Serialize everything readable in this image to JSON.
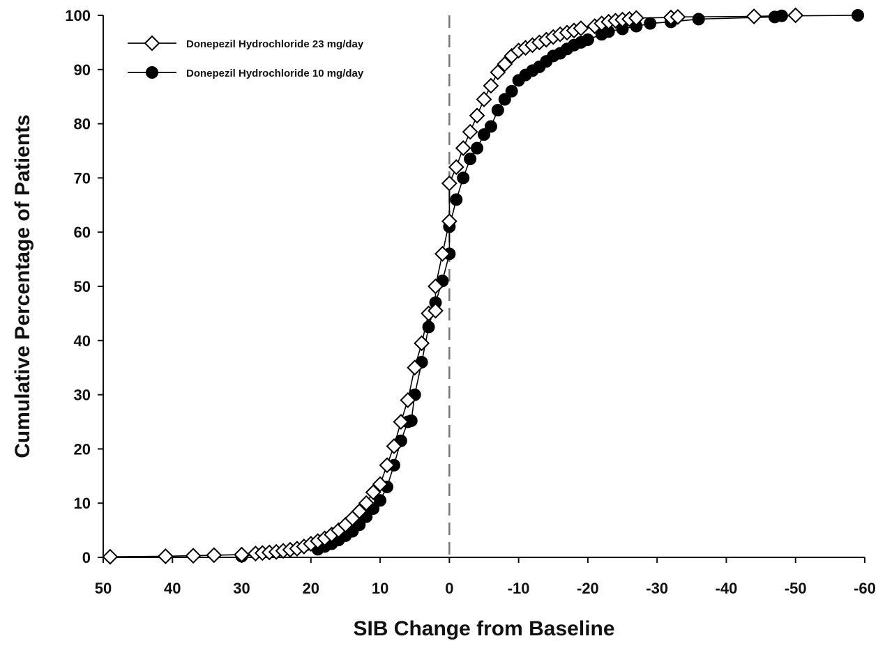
{
  "chart_data": {
    "type": "line",
    "title": "",
    "xlabel": "SIB Change from Baseline",
    "ylabel": "Cumulative Percentage of Patients",
    "xlim": [
      50,
      -60
    ],
    "ylim": [
      0,
      100
    ],
    "x_reversed": true,
    "xticks": [
      50,
      40,
      30,
      20,
      10,
      0,
      -10,
      -20,
      -30,
      -40,
      -50,
      -60
    ],
    "xtick_labels": [
      "50",
      "40",
      "30",
      "20",
      "10",
      "0",
      "-10",
      "-20",
      "-30",
      "-40",
      "-50",
      "-60"
    ],
    "yticks": [
      0,
      10,
      20,
      30,
      40,
      50,
      60,
      70,
      80,
      90,
      100
    ],
    "ytick_labels": [
      "0",
      "10",
      "20",
      "30",
      "40",
      "50",
      "60",
      "70",
      "80",
      "90",
      "100"
    ],
    "grid": false,
    "legend_position": "top-left",
    "reference_line": {
      "x": 0,
      "style": "dashed",
      "color": "#777777"
    },
    "series": [
      {
        "name": "Donepezil Hydrochloride 23 mg/day",
        "marker": "diamond-open",
        "color": "#000000",
        "points": [
          [
            49,
            0.1
          ],
          [
            41,
            0.2
          ],
          [
            37,
            0.3
          ],
          [
            34,
            0.4
          ],
          [
            30,
            0.5
          ],
          [
            28,
            0.7
          ],
          [
            27,
            0.8
          ],
          [
            26,
            0.9
          ],
          [
            25,
            1.0
          ],
          [
            24,
            1.2
          ],
          [
            23,
            1.4
          ],
          [
            22,
            1.6
          ],
          [
            21,
            2.0
          ],
          [
            20,
            2.5
          ],
          [
            19,
            3.0
          ],
          [
            18,
            3.5
          ],
          [
            17,
            4.2
          ],
          [
            16,
            5.0
          ],
          [
            15,
            6.0
          ],
          [
            14,
            7.2
          ],
          [
            13,
            8.5
          ],
          [
            12,
            10.0
          ],
          [
            11,
            12.0
          ],
          [
            10,
            13.5
          ],
          [
            9,
            17.0
          ],
          [
            8,
            20.5
          ],
          [
            7,
            25.0
          ],
          [
            6,
            29.0
          ],
          [
            5,
            35.0
          ],
          [
            4,
            39.5
          ],
          [
            3,
            45.0
          ],
          [
            2,
            45.5
          ],
          [
            2,
            50.0
          ],
          [
            1,
            56.0
          ],
          [
            0,
            62.0
          ],
          [
            0,
            69.0
          ],
          [
            -1,
            72.0
          ],
          [
            -2,
            75.5
          ],
          [
            -3,
            78.5
          ],
          [
            -4,
            81.5
          ],
          [
            -5,
            84.5
          ],
          [
            -6,
            87.0
          ],
          [
            -7,
            89.5
          ],
          [
            -8,
            91.0
          ],
          [
            -9,
            92.5
          ],
          [
            -10,
            93.5
          ],
          [
            -11,
            94.0
          ],
          [
            -12,
            94.5
          ],
          [
            -13,
            95.0
          ],
          [
            -14,
            95.5
          ],
          [
            -15,
            96.0
          ],
          [
            -16,
            96.5
          ],
          [
            -17,
            96.8
          ],
          [
            -18,
            97.2
          ],
          [
            -19,
            97.6
          ],
          [
            -21,
            98.0
          ],
          [
            -22,
            98.5
          ],
          [
            -23,
            98.8
          ],
          [
            -24,
            99.0
          ],
          [
            -25,
            99.2
          ],
          [
            -26,
            99.3
          ],
          [
            -27,
            99.5
          ],
          [
            -32,
            99.6
          ],
          [
            -33,
            99.7
          ],
          [
            -44,
            99.8
          ],
          [
            -50,
            100.0
          ]
        ]
      },
      {
        "name": "Donepezil Hydrochloride 10 mg/day",
        "marker": "circle-filled",
        "color": "#000000",
        "points": [
          [
            30,
            0.2
          ],
          [
            19,
            1.5
          ],
          [
            18,
            2.0
          ],
          [
            17,
            2.5
          ],
          [
            16,
            3.2
          ],
          [
            15,
            4.0
          ],
          [
            14,
            4.8
          ],
          [
            13,
            6.0
          ],
          [
            12,
            7.5
          ],
          [
            11,
            9.0
          ],
          [
            10,
            10.5
          ],
          [
            9,
            13.0
          ],
          [
            8,
            17.0
          ],
          [
            7,
            21.5
          ],
          [
            6,
            25.0
          ],
          [
            5.5,
            25.2
          ],
          [
            5,
            30.0
          ],
          [
            4,
            36.0
          ],
          [
            3,
            42.5
          ],
          [
            2,
            47.0
          ],
          [
            1,
            51.0
          ],
          [
            0,
            56.0
          ],
          [
            0,
            61.0
          ],
          [
            -1,
            66.0
          ],
          [
            -2,
            70.0
          ],
          [
            -3,
            73.5
          ],
          [
            -4,
            75.5
          ],
          [
            -5,
            78.0
          ],
          [
            -6,
            79.5
          ],
          [
            -7,
            82.5
          ],
          [
            -8,
            84.5
          ],
          [
            -9,
            86.0
          ],
          [
            -10,
            88.0
          ],
          [
            -11,
            89.0
          ],
          [
            -12,
            89.8
          ],
          [
            -13,
            90.5
          ],
          [
            -14,
            91.5
          ],
          [
            -15,
            92.5
          ],
          [
            -16,
            93.0
          ],
          [
            -17,
            93.8
          ],
          [
            -18,
            94.5
          ],
          [
            -19,
            95.0
          ],
          [
            -20,
            95.5
          ],
          [
            -22,
            96.5
          ],
          [
            -23,
            97.0
          ],
          [
            -25,
            97.5
          ],
          [
            -27,
            98.0
          ],
          [
            -29,
            98.5
          ],
          [
            -32,
            98.8
          ],
          [
            -36,
            99.3
          ],
          [
            -47,
            99.7
          ],
          [
            -48,
            99.9
          ],
          [
            -59,
            100.0
          ]
        ]
      }
    ]
  }
}
